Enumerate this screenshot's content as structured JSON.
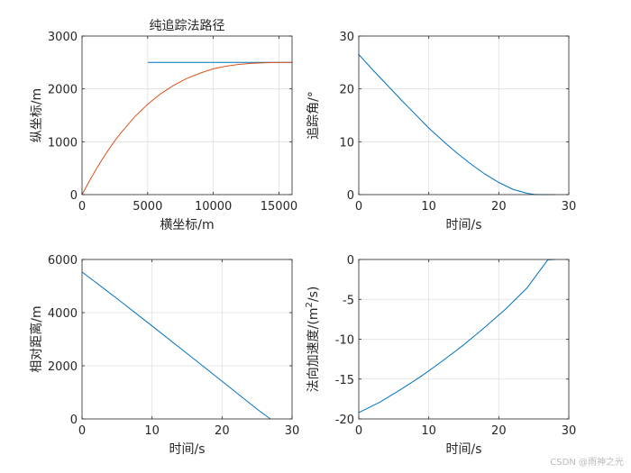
{
  "watermark": "CSDN @雨神之光",
  "chart_data": [
    {
      "id": "pursuit-path",
      "type": "line",
      "title": "纯追踪法路径",
      "xlabel": "横坐标/m",
      "ylabel": "纵坐标/m",
      "xlim": [
        0,
        16000
      ],
      "ylim": [
        0,
        3000
      ],
      "xticks": [
        0,
        5000,
        10000,
        15000
      ],
      "yticks": [
        0,
        1000,
        2000,
        3000
      ],
      "grid": true,
      "series": [
        {
          "name": "target",
          "color": "#0072BD",
          "x": [
            5000,
            16000
          ],
          "y": [
            2500,
            2500
          ]
        },
        {
          "name": "pursuer",
          "color": "#D95319",
          "x": [
            0,
            500,
            1000,
            1500,
            2000,
            2500,
            3000,
            4000,
            5000,
            6000,
            7000,
            8000,
            9000,
            10000,
            11000,
            12000,
            13000,
            14000,
            15000,
            16000
          ],
          "y": [
            0,
            230,
            450,
            650,
            840,
            1020,
            1180,
            1470,
            1710,
            1910,
            2070,
            2200,
            2300,
            2380,
            2430,
            2465,
            2485,
            2495,
            2500,
            2500
          ]
        }
      ]
    },
    {
      "id": "pursuit-angle",
      "type": "line",
      "title": "",
      "xlabel": "时间/s",
      "ylabel": "追踪角/°",
      "xlim": [
        0,
        30
      ],
      "ylim": [
        0,
        30
      ],
      "xticks": [
        0,
        10,
        20,
        30
      ],
      "yticks": [
        0,
        10,
        20,
        30
      ],
      "grid": true,
      "series": [
        {
          "name": "angle",
          "color": "#0072BD",
          "x": [
            0,
            2,
            4,
            6,
            8,
            10,
            12,
            14,
            16,
            18,
            20,
            22,
            24,
            25,
            26,
            27,
            28
          ],
          "y": [
            26.5,
            23.6,
            20.8,
            18.0,
            15.3,
            12.6,
            10.2,
            7.9,
            5.8,
            3.9,
            2.3,
            1.0,
            0.25,
            0.05,
            0.0,
            0.0,
            0.0
          ]
        }
      ]
    },
    {
      "id": "relative-distance",
      "type": "line",
      "title": "",
      "xlabel": "时间/s",
      "ylabel": "相对距离/m",
      "xlim": [
        0,
        30
      ],
      "ylim": [
        0,
        6000
      ],
      "xticks": [
        0,
        10,
        20,
        30
      ],
      "yticks": [
        0,
        2000,
        4000,
        6000
      ],
      "grid": true,
      "series": [
        {
          "name": "distance",
          "color": "#0072BD",
          "x": [
            0,
            5,
            10,
            15,
            20,
            25,
            26.9
          ],
          "y": [
            5530,
            4530,
            3500,
            2460,
            1420,
            370,
            0
          ]
        }
      ]
    },
    {
      "id": "normal-acceleration",
      "type": "line",
      "title": "",
      "xlabel": "时间/s",
      "ylabel_prefix": "法向加速度/(m",
      "ylabel_sup": "2",
      "ylabel_suffix": "/s)",
      "xlim": [
        0,
        30
      ],
      "ylim": [
        -20,
        0
      ],
      "xticks": [
        0,
        10,
        20,
        30
      ],
      "yticks": [
        -20,
        -15,
        -10,
        -5,
        0
      ],
      "grid": true,
      "series": [
        {
          "name": "acceleration",
          "color": "#0072BD",
          "x": [
            0,
            3,
            6,
            9,
            12,
            15,
            18,
            21,
            24,
            27,
            28
          ],
          "y": [
            -19.2,
            -17.9,
            -16.3,
            -14.6,
            -12.7,
            -10.7,
            -8.5,
            -6.2,
            -3.6,
            -0.05,
            0.0
          ]
        }
      ]
    }
  ]
}
